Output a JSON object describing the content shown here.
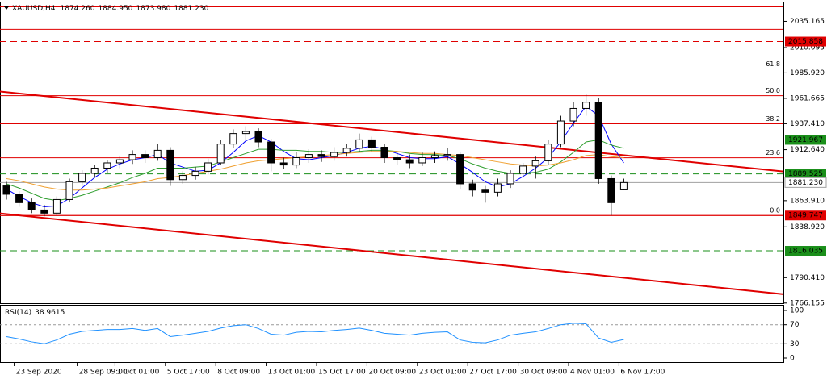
{
  "chart_data": {
    "type": "candlestick",
    "header": {
      "symbol": "XAUUSD,H4",
      "ohlc": [
        "1874.260",
        "1884.950",
        "1873.980",
        "1881.230"
      ]
    },
    "categories": [
      null,
      "23 Sep 2020",
      null,
      null,
      null,
      null,
      "28 Sep 09:00",
      null,
      null,
      "1 Oct 01:00",
      null,
      null,
      null,
      "5 Oct 17:00",
      null,
      null,
      null,
      "8 Oct 09:00",
      null,
      null,
      null,
      "13 Oct 01:00",
      null,
      null,
      null,
      "15 Oct 17:00",
      null,
      null,
      null,
      "20 Oct 09:00",
      null,
      null,
      null,
      "23 Oct 01:00",
      null,
      null,
      null,
      "27 Oct 17:00",
      null,
      null,
      null,
      "30 Oct 09:00",
      null,
      null,
      null,
      "4 Nov 01:00",
      null,
      null,
      null,
      "6 Nov 17:00"
    ],
    "candles": {
      "open": [
        1878,
        1870,
        1862,
        1855,
        1852,
        1865,
        1882,
        1890,
        1895,
        1900,
        1903,
        1908,
        1905,
        1912,
        1884,
        1888,
        1892,
        1900,
        1918,
        1928,
        1930,
        1920,
        1900,
        1898,
        1905,
        1908,
        1906,
        1910,
        1914,
        1922,
        1915,
        1905,
        1903,
        1900,
        1905,
        1907,
        1908,
        1880,
        1874,
        1872,
        1880,
        1890,
        1897,
        1902,
        1918,
        1940,
        1952,
        1958,
        1885,
        1874.26
      ],
      "high": [
        1882,
        1873,
        1866,
        1860,
        1868,
        1885,
        1893,
        1898,
        1903,
        1907,
        1912,
        1912,
        1918,
        1915,
        1892,
        1896,
        1904,
        1922,
        1932,
        1935,
        1933,
        1923,
        1905,
        1910,
        1913,
        1912,
        1915,
        1918,
        1928,
        1925,
        1918,
        1910,
        1908,
        1910,
        1911,
        1914,
        1910,
        1884,
        1878,
        1885,
        1893,
        1900,
        1906,
        1922,
        1945,
        1958,
        1966,
        1962,
        1888,
        1884.95
      ],
      "low": [
        1865,
        1858,
        1852,
        1849,
        1850,
        1863,
        1878,
        1886,
        1890,
        1895,
        1899,
        1900,
        1902,
        1878,
        1880,
        1884,
        1889,
        1898,
        1914,
        1922,
        1915,
        1892,
        1894,
        1895,
        1900,
        1901,
        1902,
        1906,
        1910,
        1910,
        1900,
        1898,
        1895,
        1897,
        1900,
        1902,
        1875,
        1868,
        1862,
        1868,
        1876,
        1886,
        1885,
        1898,
        1915,
        1935,
        1945,
        1880,
        1849.747,
        1873.98
      ],
      "close": [
        1870,
        1862,
        1855,
        1852,
        1865,
        1882,
        1890,
        1895,
        1900,
        1903,
        1908,
        1905,
        1912,
        1884,
        1888,
        1892,
        1900,
        1918,
        1928,
        1930,
        1920,
        1900,
        1898,
        1905,
        1908,
        1906,
        1910,
        1914,
        1922,
        1915,
        1905,
        1903,
        1900,
        1905,
        1907,
        1908,
        1880,
        1874,
        1872,
        1880,
        1890,
        1897,
        1902,
        1918,
        1940,
        1952,
        1958,
        1885,
        1862,
        1881.23
      ],
      "up_color": "#ffffff",
      "down_color": "#000000"
    },
    "series": [
      {
        "color": "#0000ff",
        "values": [
          1875,
          1868,
          1862,
          1858,
          1859,
          1866,
          1876,
          1886,
          1894,
          1899,
          1903,
          1905,
          1908,
          1900,
          1896,
          1892,
          1893,
          1900,
          1910,
          1921,
          1926,
          1920,
          1911,
          1904,
          1903,
          1905,
          1907,
          1910,
          1914,
          1916,
          1913,
          1909,
          1905,
          1904,
          1904,
          1906,
          1899,
          1891,
          1882,
          1877,
          1880,
          1887,
          1895,
          1905,
          1920,
          1938,
          1954,
          1945,
          1918,
          1900
        ]
      },
      {
        "color": "#2e9e2e",
        "values": [
          1880,
          1876,
          1871,
          1866,
          1864,
          1866,
          1869,
          1873,
          1877,
          1881,
          1886,
          1890,
          1895,
          1895,
          1895,
          1896,
          1897,
          1901,
          1905,
          1909,
          1913,
          1913,
          1912,
          1912,
          1911,
          1911,
          1910,
          1910,
          1911,
          1912,
          1912,
          1911,
          1909,
          1908,
          1908,
          1907,
          1904,
          1899,
          1895,
          1892,
          1890,
          1890,
          1891,
          1894,
          1901,
          1910,
          1920,
          1922,
          1917,
          1914
        ]
      },
      {
        "color": "#f0a030",
        "values": [
          1885,
          1883,
          1880,
          1877,
          1875,
          1874,
          1874,
          1875,
          1876,
          1878,
          1880,
          1882,
          1885,
          1886,
          1888,
          1890,
          1892,
          1894,
          1897,
          1900,
          1902,
          1903,
          1904,
          1905,
          1906,
          1907,
          1908,
          1909,
          1910,
          1911,
          1911,
          1911,
          1910,
          1909,
          1909,
          1908,
          1907,
          1905,
          1903,
          1901,
          1899,
          1898,
          1897,
          1898,
          1900,
          1903,
          1907,
          1908,
          1906,
          1905
        ]
      }
    ],
    "ylim": [
      1766,
      2054
    ],
    "yticks": [
      2035.165,
      2010.095,
      {
        "value": 1985.92,
        "label": "1985.920"
      },
      1961.665,
      {
        "value": 1937.41,
        "label": "1937.410"
      },
      {
        "value": 1912.64,
        "label": "1912.640"
      },
      {
        "value": 1863.91,
        "label": "1863.910"
      },
      {
        "value": 1838.92,
        "label": "1838.920"
      },
      {
        "value": 1790.41,
        "label": "1790.410"
      },
      1766.155
    ],
    "levels": [
      {
        "value": 2049.0,
        "color": "#e00000",
        "style": "solid"
      },
      {
        "value": 2027.5,
        "color": "#e00000",
        "style": "solid"
      },
      {
        "value": 2015.858,
        "label": "2015.858",
        "color": "#e00000",
        "style": "dashed"
      },
      {
        "value": 1921.967,
        "label": "1921.967",
        "color": "#1a8f1a",
        "style": "dashed"
      },
      {
        "value": 1889.525,
        "label": "1889.525",
        "color": "#1a8f1a",
        "style": "dashed"
      },
      {
        "value": 1849.747,
        "label": "1849.747",
        "color": "#e00000",
        "style": "solid"
      },
      {
        "value": 1816.035,
        "label": "1816.035",
        "color": "#1a8f1a",
        "style": "dashed"
      }
    ],
    "current_price": {
      "value": 1881.23,
      "label": "1881.230",
      "color": "#a0a0a0"
    },
    "fib_levels": [
      {
        "label": "61.8",
        "price": 1989.7
      },
      {
        "label": "50.0",
        "price": 1964.2
      },
      {
        "label": "38.2",
        "price": 1937.3
      },
      {
        "label": "23.6",
        "price": 1904.9
      },
      {
        "label": "0.0",
        "price": 1849.747
      }
    ],
    "fib_color": "#e00000",
    "trendlines": [
      {
        "x": [
          0,
          61
        ],
        "y": [
          1967.5,
          1892.6
        ],
        "color": "#e00000"
      },
      {
        "x": [
          0,
          61
        ],
        "y": [
          1851.1,
          1775.4
        ],
        "color": "#e00000"
      }
    ],
    "rsi": {
      "name": "RSI(14)",
      "color": "#1e90ff",
      "values": [
        45,
        40,
        34,
        30,
        38,
        50,
        56,
        58,
        60,
        60,
        62,
        58,
        62,
        45,
        48,
        52,
        56,
        63,
        68,
        70,
        62,
        50,
        48,
        54,
        56,
        55,
        58,
        60,
        63,
        58,
        52,
        50,
        48,
        52,
        54,
        55,
        38,
        33,
        32,
        38,
        48,
        52,
        55,
        62,
        70,
        73,
        72,
        42,
        33,
        38.9615
      ],
      "ylim": [
        0,
        100
      ],
      "yticks": [
        100,
        70,
        30,
        0
      ],
      "levels": [
        70,
        30
      ]
    }
  }
}
